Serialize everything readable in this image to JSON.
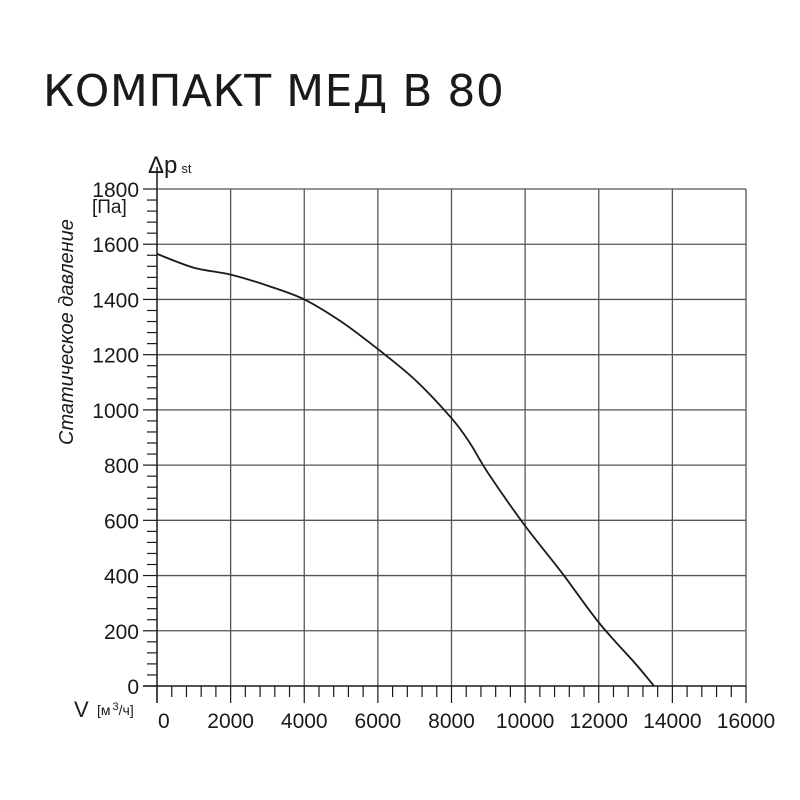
{
  "page": {
    "title": "КОМПАКТ МЕД В 80"
  },
  "axes": {
    "y_symbol": "Δp",
    "y_symbol_sub": "st",
    "y_unit": "[Па]",
    "y_label": "Статическое давление",
    "x_symbol": "V",
    "x_unit": "[м³/ч]",
    "x_unit_base": "[м",
    "x_unit_sup": "3",
    "x_unit_rest": "/ч]"
  },
  "colors": {
    "grid": "#555555",
    "curve": "#1a1a1a",
    "text": "#1a1a1a"
  },
  "chart_data": {
    "type": "line",
    "title": "КОМПАКТ МЕД В 80",
    "xlabel": "V [м³/ч]",
    "ylabel": "Статическое давление Δp st [Па]",
    "xlim": [
      0,
      16000
    ],
    "ylim": [
      0,
      1800
    ],
    "x_ticks": [
      0,
      2000,
      4000,
      6000,
      8000,
      10000,
      12000,
      14000,
      16000
    ],
    "y_ticks": [
      0,
      200,
      400,
      600,
      800,
      1000,
      1200,
      1400,
      1600,
      1800
    ],
    "x_minor_step": 400,
    "y_minor_step": 40,
    "grid": true,
    "legend": null,
    "series": [
      {
        "name": "КОМПАКТ МЕД В 80",
        "x": [
          0,
          1000,
          2000,
          3000,
          4000,
          5000,
          6000,
          7000,
          8000,
          8500,
          9000,
          10000,
          11000,
          12000,
          13000,
          13500
        ],
        "y": [
          1565,
          1515,
          1490,
          1450,
          1400,
          1320,
          1220,
          1110,
          970,
          880,
          770,
          580,
          410,
          230,
          80,
          0
        ]
      }
    ]
  }
}
